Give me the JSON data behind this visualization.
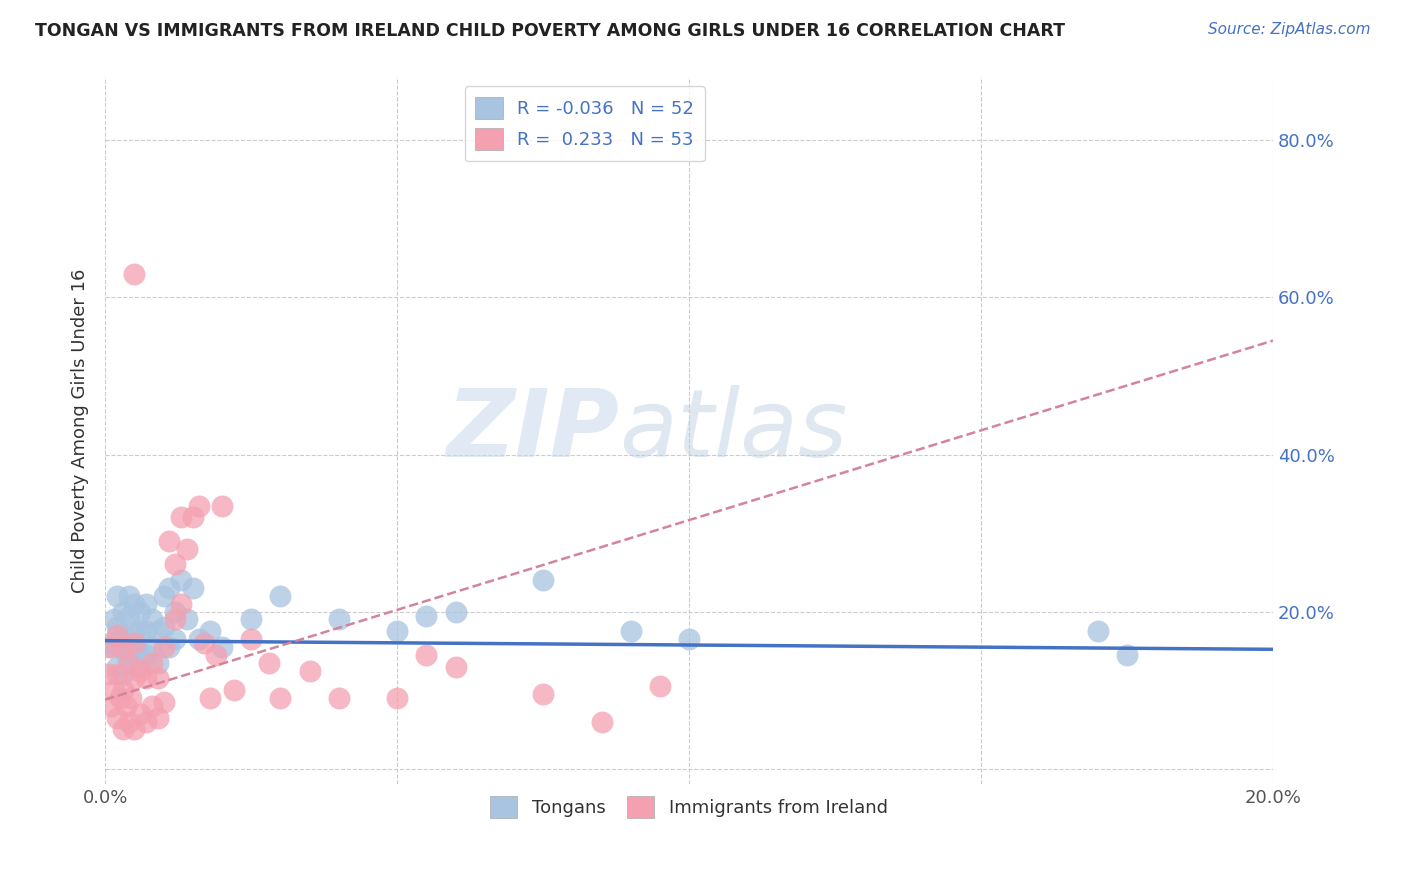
{
  "title": "TONGAN VS IMMIGRANTS FROM IRELAND CHILD POVERTY AMONG GIRLS UNDER 16 CORRELATION CHART",
  "source": "Source: ZipAtlas.com",
  "ylabel": "Child Poverty Among Girls Under 16",
  "xlim": [
    0.0,
    0.2
  ],
  "ylim": [
    -0.02,
    0.88
  ],
  "xticks": [
    0.0,
    0.05,
    0.1,
    0.15,
    0.2
  ],
  "xtick_labels": [
    "0.0%",
    "",
    "",
    "",
    "20.0%"
  ],
  "yticks": [
    0.0,
    0.2,
    0.4,
    0.6,
    0.8
  ],
  "ytick_labels_right": [
    "",
    "20.0%",
    "40.0%",
    "60.0%",
    "80.0%"
  ],
  "blue_color": "#a8c4e0",
  "pink_color": "#f4a0b0",
  "blue_line_color": "#4472c4",
  "pink_line_color": "#d4849a",
  "grid_color": "#cccccc",
  "legend_R_blue": "-0.036",
  "legend_N_blue": "52",
  "legend_R_pink": "0.233",
  "legend_N_pink": "53",
  "watermark_zip": "ZIP",
  "watermark_atlas": "atlas",
  "blue_scatter_x": [
    0.0005,
    0.001,
    0.0015,
    0.002,
    0.002,
    0.002,
    0.0025,
    0.003,
    0.003,
    0.003,
    0.0035,
    0.004,
    0.004,
    0.004,
    0.0045,
    0.005,
    0.005,
    0.005,
    0.0055,
    0.006,
    0.006,
    0.006,
    0.007,
    0.007,
    0.007,
    0.008,
    0.008,
    0.009,
    0.009,
    0.01,
    0.01,
    0.011,
    0.011,
    0.012,
    0.012,
    0.013,
    0.014,
    0.015,
    0.016,
    0.018,
    0.02,
    0.025,
    0.03,
    0.04,
    0.05,
    0.055,
    0.06,
    0.075,
    0.09,
    0.1,
    0.17,
    0.175
  ],
  "blue_scatter_y": [
    0.155,
    0.16,
    0.19,
    0.13,
    0.18,
    0.22,
    0.155,
    0.12,
    0.17,
    0.2,
    0.145,
    0.16,
    0.195,
    0.22,
    0.16,
    0.14,
    0.175,
    0.21,
    0.155,
    0.13,
    0.175,
    0.2,
    0.145,
    0.175,
    0.21,
    0.155,
    0.19,
    0.135,
    0.175,
    0.18,
    0.22,
    0.155,
    0.23,
    0.165,
    0.2,
    0.24,
    0.19,
    0.23,
    0.165,
    0.175,
    0.155,
    0.19,
    0.22,
    0.19,
    0.175,
    0.195,
    0.2,
    0.24,
    0.175,
    0.165,
    0.175,
    0.145
  ],
  "pink_scatter_x": [
    0.0005,
    0.001,
    0.001,
    0.0015,
    0.002,
    0.002,
    0.002,
    0.0025,
    0.003,
    0.003,
    0.003,
    0.0035,
    0.004,
    0.004,
    0.0045,
    0.005,
    0.005,
    0.005,
    0.006,
    0.006,
    0.007,
    0.007,
    0.008,
    0.008,
    0.009,
    0.009,
    0.01,
    0.01,
    0.011,
    0.012,
    0.012,
    0.013,
    0.013,
    0.014,
    0.015,
    0.016,
    0.017,
    0.018,
    0.019,
    0.02,
    0.022,
    0.025,
    0.028,
    0.03,
    0.035,
    0.04,
    0.05,
    0.055,
    0.06,
    0.075,
    0.085,
    0.095,
    0.005
  ],
  "pink_scatter_y": [
    0.12,
    0.08,
    0.155,
    0.1,
    0.065,
    0.12,
    0.17,
    0.09,
    0.05,
    0.1,
    0.155,
    0.08,
    0.06,
    0.135,
    0.09,
    0.05,
    0.115,
    0.16,
    0.07,
    0.125,
    0.06,
    0.115,
    0.08,
    0.135,
    0.065,
    0.115,
    0.085,
    0.155,
    0.29,
    0.19,
    0.26,
    0.21,
    0.32,
    0.28,
    0.32,
    0.335,
    0.16,
    0.09,
    0.145,
    0.335,
    0.1,
    0.165,
    0.135,
    0.09,
    0.125,
    0.09,
    0.09,
    0.145,
    0.13,
    0.095,
    0.06,
    0.105,
    0.63
  ],
  "blue_trend_x": [
    0.0,
    0.2
  ],
  "blue_trend_y": [
    0.163,
    0.152
  ],
  "pink_trend_x": [
    0.0,
    0.2
  ],
  "pink_trend_y": [
    0.088,
    0.545
  ]
}
